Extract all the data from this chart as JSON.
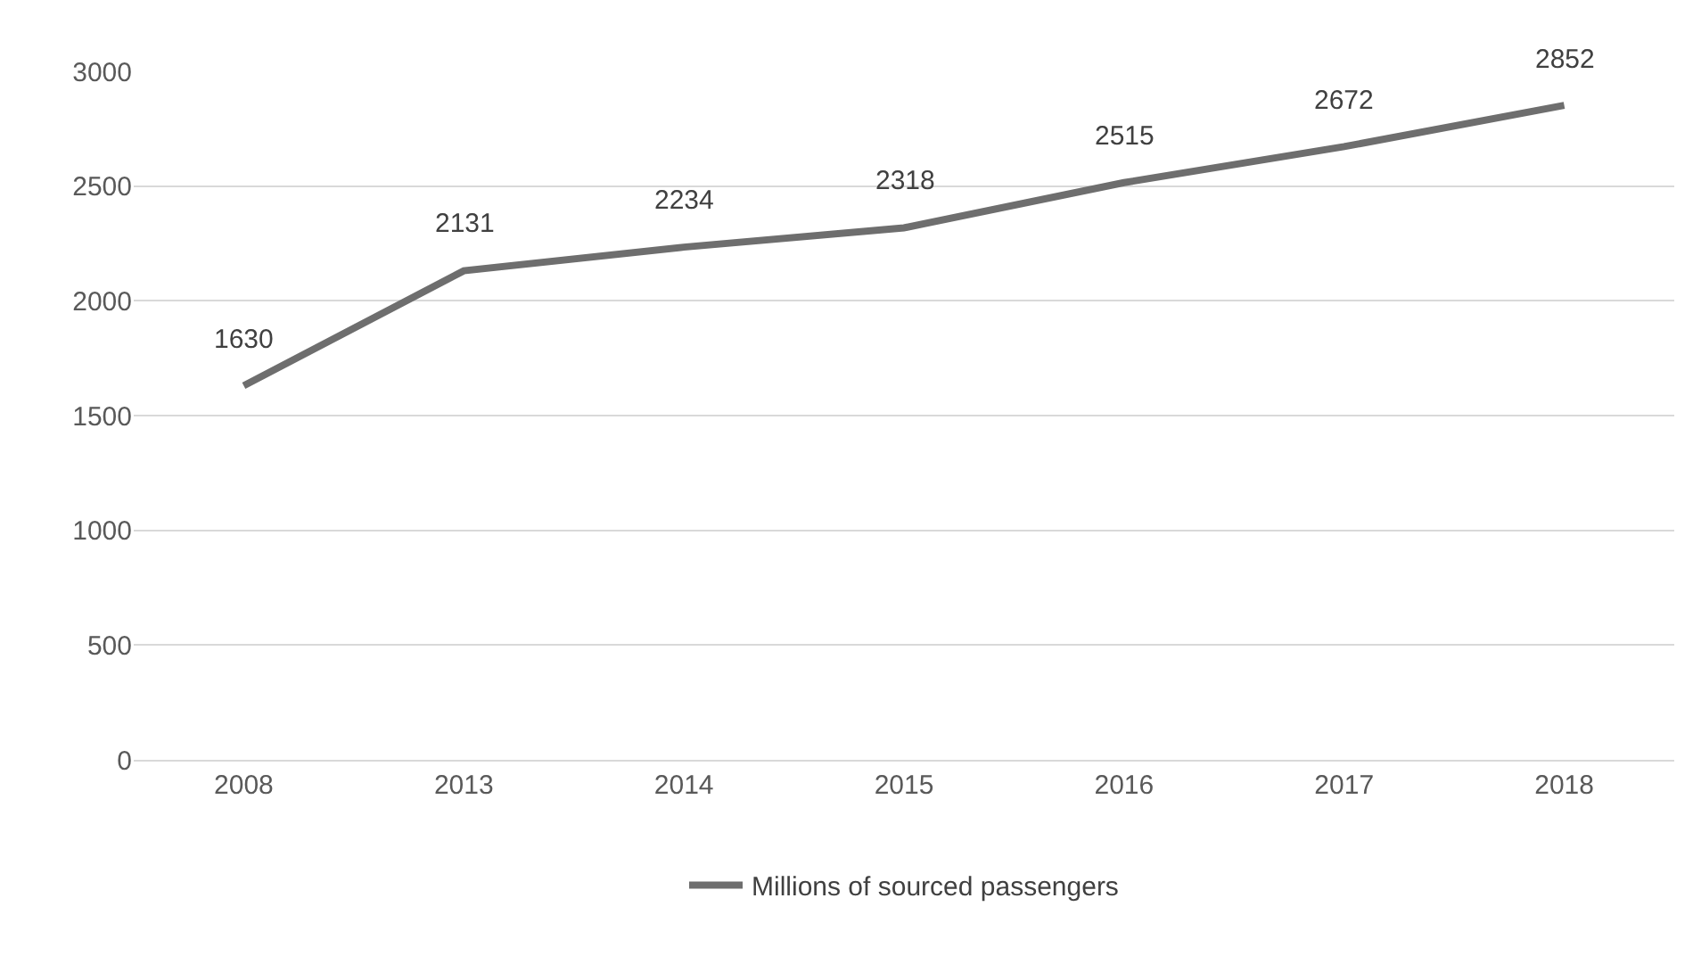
{
  "chart_data": {
    "type": "line",
    "categories": [
      "2008",
      "2013",
      "2014",
      "2015",
      "2016",
      "2017",
      "2018"
    ],
    "series": [
      {
        "name": "Millions of sourced passengers",
        "color": "#6e6e6e",
        "values": [
          1630,
          2131,
          2234,
          2318,
          2515,
          2672,
          2852
        ]
      }
    ],
    "ylim": [
      0,
      3000
    ],
    "yticks": [
      0,
      500,
      1000,
      1500,
      2000,
      2500,
      3000
    ],
    "grid": "y",
    "legend": "bottom",
    "data_labels": true,
    "marker": "none",
    "line_style": "solid"
  }
}
